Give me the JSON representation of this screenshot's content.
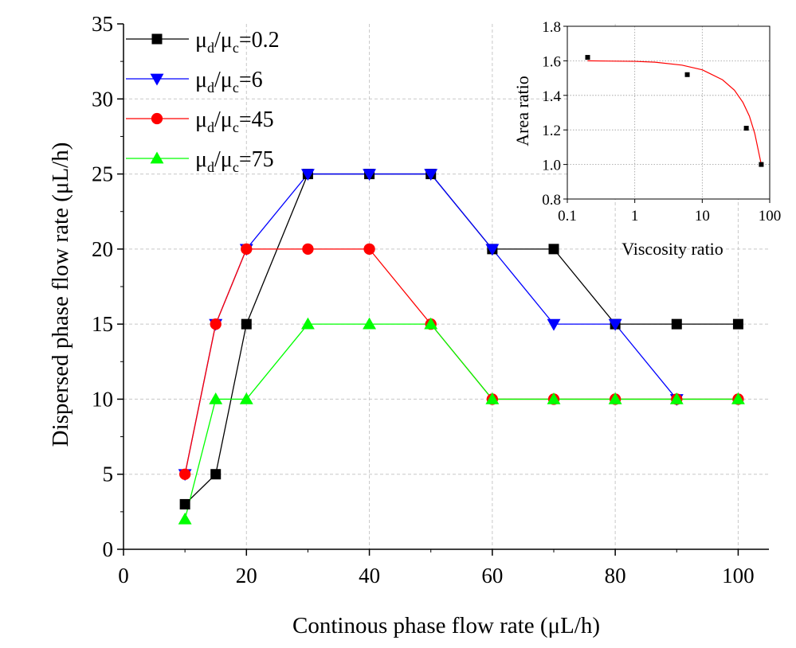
{
  "chart_data": [
    {
      "type": "line",
      "xlabel": "Continous phase flow rate (μL/h)",
      "ylabel": "Dispersed phase flow rate (μL/h)",
      "xlim": [
        0,
        105
      ],
      "ylim": [
        0,
        35
      ],
      "x_ticks": [
        0,
        20,
        40,
        60,
        80,
        100
      ],
      "y_ticks": [
        0,
        5,
        10,
        15,
        20,
        25,
        30,
        35
      ],
      "grid": true,
      "legend_position": "top-left",
      "series": [
        {
          "name": "μd/μc=0.2",
          "name_parts": {
            "mu": "μ",
            "d": "d",
            "slash": "/",
            "c": "c",
            "value": "=0.2"
          },
          "color": "#000000",
          "marker": "square",
          "x": [
            10,
            15,
            20,
            30,
            40,
            50,
            60,
            70,
            80,
            90,
            100
          ],
          "values": [
            3,
            5,
            15,
            25,
            25,
            25,
            20,
            20,
            15,
            15,
            15
          ]
        },
        {
          "name": "μd/μc=6",
          "name_parts": {
            "mu": "μ",
            "d": "d",
            "slash": "/",
            "c": "c",
            "value": "=6"
          },
          "color": "#0000ff",
          "marker": "triangle-down",
          "x": [
            10,
            15,
            20,
            30,
            40,
            50,
            60,
            70,
            80,
            90
          ],
          "values": [
            5,
            15,
            20,
            25,
            25,
            25,
            20,
            15,
            15,
            10
          ]
        },
        {
          "name": "μd/μc=45",
          "name_parts": {
            "mu": "μ",
            "d": "d",
            "slash": "/",
            "c": "c",
            "value": "=45"
          },
          "color": "#ff0000",
          "marker": "circle",
          "x": [
            10,
            15,
            20,
            30,
            40,
            50,
            60,
            70,
            80,
            90,
            100
          ],
          "values": [
            5,
            15,
            20,
            20,
            20,
            15,
            10,
            10,
            10,
            10,
            10
          ]
        },
        {
          "name": "μd/μc=75",
          "name_parts": {
            "mu": "μ",
            "d": "d",
            "slash": "/",
            "c": "c",
            "value": "=75"
          },
          "color": "#00ff00",
          "marker": "triangle-up",
          "x": [
            10,
            15,
            20,
            30,
            40,
            50,
            60,
            70,
            80,
            90,
            100
          ],
          "values": [
            2,
            10,
            10,
            15,
            15,
            15,
            10,
            10,
            10,
            10,
            10
          ]
        }
      ]
    },
    {
      "type": "scatter",
      "inset": true,
      "xlabel": "Viscosity ratio",
      "ylabel": "Area ratio",
      "x_scale": "log",
      "xlim": [
        0.1,
        100
      ],
      "ylim": [
        0.8,
        1.8
      ],
      "x_ticks": [
        0.1,
        1,
        10,
        100
      ],
      "x_tick_labels": [
        "0.1",
        "1",
        "10",
        "100"
      ],
      "y_ticks": [
        0.8,
        1.0,
        1.2,
        1.4,
        1.6,
        1.8
      ],
      "y_tick_labels": [
        "0.8",
        "1.0",
        "1.2",
        "1.4",
        "1.6",
        "1.8"
      ],
      "grid": true,
      "points": {
        "x": [
          0.2,
          6,
          45,
          75
        ],
        "values": [
          1.62,
          1.52,
          1.21,
          1.0
        ],
        "color": "#000000"
      },
      "fit": {
        "color": "#ff0000",
        "x": [
          0.2,
          1,
          2,
          5,
          10,
          20,
          30,
          40,
          50,
          60,
          75
        ],
        "values": [
          1.6,
          1.597,
          1.592,
          1.575,
          1.548,
          1.49,
          1.43,
          1.36,
          1.28,
          1.18,
          1.0
        ]
      }
    }
  ]
}
